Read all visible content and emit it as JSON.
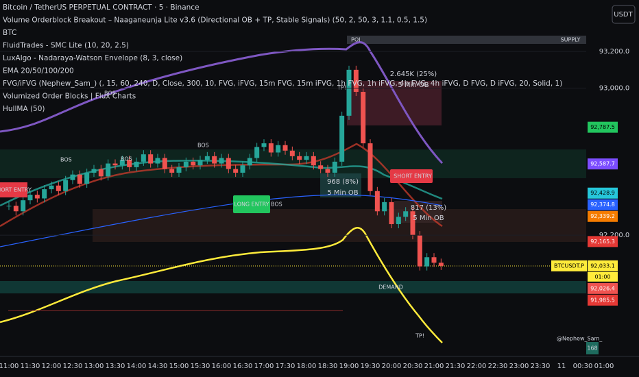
{
  "header": {
    "lines": [
      "Bitcoin / TetherUS PERPETUAL CONTRACT · 5 · Binance",
      "Volume Orderblock Breakout – Naaganeunja Lite v3.6 (Directional OB + TP, Stable Signals) (50, 2, 50, 3, 1.1, 0.5, 1.5)",
      "BTC",
      "FluidTrades - SMC Lite (10, 20, 2.5)",
      "LuxAlgo - Nadaraya-Watson Envelope (8, 3, close)",
      "EMA 20/50/100/200",
      "FVG/iFVG (Nephew_Sam_) (, 15, 60, 240, D, Close, 300, 10, FVG, iFVG, 15m FVG, 15m iFVG, 1h FVG, 1h iFVG, 4h FVG, 4h iFVG, D FVG, D iFVG, 20, Solid, 1)",
      "Volumized Order Blocks | Flux Charts",
      "HullMA (50)"
    ]
  },
  "currency": "USDT",
  "price_axis": {
    "ylim": [
      91540,
      93480
    ],
    "ticks": [
      {
        "value": 93200,
        "label": "93,200.0"
      },
      {
        "value": 93000,
        "label": "93,000.0"
      },
      {
        "value": 92200,
        "label": "92,200.0"
      }
    ],
    "labels": [
      {
        "value": 92787.5,
        "label": "92,787.5",
        "color": "#22c55e"
      },
      {
        "value": 92587.7,
        "label": "92,587.7",
        "color": "#7c4dff"
      },
      {
        "value": 92428.9,
        "label": "92,428.9",
        "color": "#26c6da"
      },
      {
        "value": 92374.8,
        "label": "92,374.8",
        "color": "#2962ff"
      },
      {
        "value": 92339.2,
        "label": "92,339.2",
        "color": "#f57c00"
      },
      {
        "value": 92165.3,
        "label": "92,165.3",
        "color": "#e53935"
      },
      {
        "value": 92033.1,
        "label": "92,033.1",
        "color": "#ffeb3b"
      },
      {
        "value": 92026.4,
        "label": "92,026.4",
        "color": "#ef5350"
      },
      {
        "value": 91985.5,
        "label": "91,985.5",
        "color": "#e53935"
      }
    ]
  },
  "symbol_tag": "BTCUSDT.P",
  "countdown": "01:00",
  "volume_label": "168",
  "time_axis": {
    "labels": [
      "11:00",
      "11:30",
      "12:00",
      "12:30",
      "13:00",
      "13:30",
      "14:00",
      "14:30",
      "15:00",
      "15:30",
      "16:00",
      "16:30",
      "17:00",
      "17:30",
      "18:00",
      "18:30",
      "19:00",
      "19:30",
      "20:00",
      "20:30",
      "21:00",
      "21:30",
      "22:00",
      "22:30",
      "23:00",
      "23:30",
      "11",
      "00:30",
      "01:00"
    ]
  },
  "price_chart": {
    "closes": [
      92360,
      92330,
      92390,
      92420,
      92400,
      92450,
      92470,
      92440,
      92500,
      92530,
      92480,
      92540,
      92560,
      92520,
      92590,
      92580,
      92610,
      92570,
      92600,
      92640,
      92590,
      92620,
      92560,
      92540,
      92570,
      92600,
      92580,
      92610,
      92630,
      92590,
      92620,
      92560,
      92540,
      92580,
      92620,
      92680,
      92700,
      92650,
      92690,
      92660,
      92630,
      92610,
      92630,
      92580,
      92560,
      92540,
      92600,
      92850,
      93100,
      92980,
      92700,
      92440,
      92330,
      92380,
      92260,
      92300,
      92330,
      92200,
      92030,
      92080,
      92050,
      92033
    ]
  },
  "annotations": {
    "short_entry_left": "SHORT ENTRY",
    "short_entry_right": "SHORT ENTRY",
    "long_entry": "LONG ENTRY",
    "tp_top": "TP!",
    "tp_bottom": "TP!",
    "bos": [
      "BOS",
      "BOS",
      "BOS",
      "BOS",
      "BOS"
    ],
    "ob1_size": "2.645K (25%)",
    "ob1_name": "5 Min OB",
    "ob2_size": "968 (8%)",
    "ob2_name": "5 Min OB",
    "ob3_size": "817 (13%)",
    "ob3_name": "5 Min OB",
    "demand": "DEMAND",
    "supply": "SUPPLY",
    "poi": "POI",
    "watermark": "@Nephew_Sam_"
  }
}
